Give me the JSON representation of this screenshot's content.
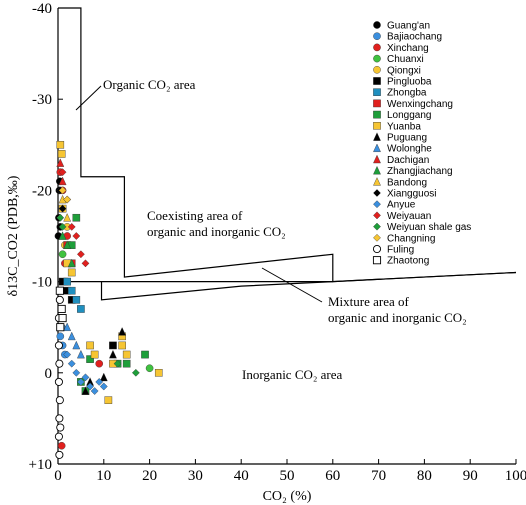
{
  "chart_data": {
    "type": "scatter",
    "x": {
      "label": "CO₂ (%)",
      "min": 0,
      "max": 100,
      "ticks": [
        0,
        10,
        20,
        30,
        40,
        50,
        60,
        70,
        80,
        90,
        100
      ]
    },
    "y": {
      "label": "δ13C_CO2 (PDB,‰)",
      "min": -40,
      "max": 10,
      "reversed": true,
      "ticks": [
        -40,
        -30,
        -20,
        -10,
        0,
        10
      ],
      "tick_labels": [
        "-40",
        "-30",
        "-20",
        "-10",
        "0",
        "+10"
      ]
    },
    "grid": false,
    "legend_position": "top-right",
    "series": [
      {
        "name": "Guang'an",
        "marker": "circle",
        "color": "#000000",
        "points": [
          [
            0.2,
            -17
          ],
          [
            0.5,
            -16
          ],
          [
            0.3,
            -20
          ],
          [
            0.4,
            -21
          ],
          [
            0.1,
            -15
          ]
        ]
      },
      {
        "name": "Bajiaochang",
        "marker": "circle",
        "color": "#3b8fde",
        "points": [
          [
            0.5,
            -4
          ],
          [
            1,
            -3
          ],
          [
            1.5,
            -2
          ],
          [
            0.8,
            -5
          ]
        ]
      },
      {
        "name": "Xinchang",
        "marker": "circle",
        "color": "#e0201e",
        "points": [
          [
            0.5,
            -22
          ],
          [
            1,
            -20
          ],
          [
            1.5,
            -12
          ],
          [
            2,
            -15
          ],
          [
            9,
            -1
          ],
          [
            0.8,
            8
          ]
        ]
      },
      {
        "name": "Chuanxi",
        "marker": "circle",
        "color": "#3fc23f",
        "points": [
          [
            20,
            -0.5
          ],
          [
            1,
            -13
          ],
          [
            2,
            -10
          ]
        ]
      },
      {
        "name": "Qiongxi",
        "marker": "circle",
        "color": "#f6c533",
        "points": [
          [
            1,
            -18
          ],
          [
            2,
            -16
          ],
          [
            1.5,
            -14
          ],
          [
            2.5,
            -12
          ],
          [
            0.5,
            -6
          ]
        ]
      },
      {
        "name": "Pingluoba",
        "marker": "square",
        "color": "#000000",
        "points": [
          [
            1,
            -10
          ],
          [
            2,
            -9
          ],
          [
            3,
            -8
          ],
          [
            12,
            -3
          ]
        ]
      },
      {
        "name": "Zhongba",
        "marker": "square",
        "color": "#1f8fbf",
        "points": [
          [
            2,
            -10
          ],
          [
            3,
            -9
          ],
          [
            4,
            -8
          ],
          [
            5,
            -7
          ]
        ]
      },
      {
        "name": "Wenxingchang",
        "marker": "square",
        "color": "#e0201e",
        "points": [
          [
            2,
            -14
          ],
          [
            3,
            -12
          ]
        ]
      },
      {
        "name": "Longgang",
        "marker": "square",
        "color": "#1e9e3a",
        "points": [
          [
            4,
            -17
          ],
          [
            3,
            -14
          ],
          [
            15,
            -1
          ],
          [
            19,
            -2
          ],
          [
            13,
            -1
          ],
          [
            7,
            -1.5
          ],
          [
            5,
            1
          ],
          [
            6,
            2
          ]
        ]
      },
      {
        "name": "Yuanba",
        "marker": "square",
        "color": "#f6c533",
        "points": [
          [
            0.5,
            -25
          ],
          [
            0.8,
            -24
          ],
          [
            1,
            -18
          ],
          [
            2,
            -12
          ],
          [
            3,
            -11
          ],
          [
            7,
            -3
          ],
          [
            8,
            -2
          ],
          [
            12,
            -1
          ],
          [
            14,
            -4
          ],
          [
            15,
            -2
          ],
          [
            22,
            0
          ],
          [
            11,
            3
          ],
          [
            14,
            -3
          ]
        ]
      },
      {
        "name": "Puguang",
        "marker": "triangle",
        "color": "#000000",
        "points": [
          [
            14,
            -4.5
          ],
          [
            12,
            -2
          ],
          [
            10,
            0.5
          ],
          [
            6,
            2
          ],
          [
            7,
            1
          ]
        ]
      },
      {
        "name": "Wolonghe",
        "marker": "triangle",
        "color": "#3b8fde",
        "points": [
          [
            2,
            -5
          ],
          [
            3,
            -4
          ],
          [
            4,
            -3
          ],
          [
            5,
            -2
          ]
        ]
      },
      {
        "name": "Dachigan",
        "marker": "triangle",
        "color": "#e0201e",
        "points": [
          [
            0.5,
            -23
          ],
          [
            1,
            -21
          ]
        ]
      },
      {
        "name": "Zhangjiachang",
        "marker": "triangle",
        "color": "#1e9e3a",
        "points": [
          [
            1,
            -15
          ],
          [
            2,
            -14
          ],
          [
            3,
            -12
          ]
        ]
      },
      {
        "name": "Bandong",
        "marker": "triangle",
        "color": "#f6c533",
        "points": [
          [
            1,
            -19
          ],
          [
            2,
            -17
          ]
        ]
      },
      {
        "name": "Xiangguosi",
        "marker": "diamond",
        "color": "#000000",
        "points": [
          [
            0.5,
            -20
          ],
          [
            1,
            -18
          ]
        ]
      },
      {
        "name": "Anyue",
        "marker": "diamond",
        "color": "#3b8fde",
        "points": [
          [
            2,
            -2
          ],
          [
            3,
            -1
          ],
          [
            4,
            0
          ],
          [
            5,
            1
          ],
          [
            6,
            0.5
          ],
          [
            7,
            1.5
          ],
          [
            8,
            2
          ],
          [
            9,
            1
          ],
          [
            10,
            1.5
          ]
        ]
      },
      {
        "name": "Weiyauan",
        "marker": "diamond",
        "color": "#e0201e",
        "points": [
          [
            2,
            -19
          ],
          [
            3,
            -16
          ],
          [
            4,
            -15
          ],
          [
            5,
            -13
          ],
          [
            6,
            -12
          ],
          [
            1,
            -22
          ]
        ]
      },
      {
        "name": "Weiyuan shale gas",
        "marker": "diamond",
        "color": "#1e9e3a",
        "points": [
          [
            0.5,
            -17
          ],
          [
            1,
            -16
          ],
          [
            17,
            0
          ],
          [
            13,
            -1
          ]
        ]
      },
      {
        "name": "Changning",
        "marker": "diamond",
        "color": "#f6c533",
        "points": [
          [
            1,
            -20
          ],
          [
            2,
            -19
          ]
        ]
      },
      {
        "name": "Fuling",
        "marker": "circle-open",
        "color": "#000000",
        "points": [
          [
            0.2,
            -3
          ],
          [
            0.3,
            -1
          ],
          [
            0.2,
            1
          ],
          [
            0.4,
            3
          ],
          [
            0.3,
            5
          ],
          [
            0.2,
            7
          ],
          [
            0.3,
            9
          ],
          [
            0.5,
            6
          ],
          [
            0.2,
            -6
          ],
          [
            0.4,
            -8
          ]
        ]
      },
      {
        "name": "Zhaotong",
        "marker": "square-open",
        "color": "#000000",
        "points": [
          [
            0.5,
            -5
          ],
          [
            0.8,
            -7
          ],
          [
            0.4,
            -9
          ],
          [
            1,
            -6
          ]
        ]
      }
    ],
    "annotations": [
      {
        "text": "Organic  CO₂ area"
      },
      {
        "text": "Coexisting area of"
      },
      {
        "text": "organic and inorganic  CO₂"
      },
      {
        "text": "Mixture area of"
      },
      {
        "text": "organic and inorganic  CO₂"
      },
      {
        "text": "Inorganic  CO₂ area"
      }
    ],
    "boundary_lines": [
      {
        "name": "organic-boundary",
        "points": [
          [
            0,
            -40
          ],
          [
            5,
            -40
          ],
          [
            5,
            -21.5
          ],
          [
            14.5,
            -21.5
          ],
          [
            14.5,
            -10.5
          ],
          [
            60,
            -13
          ],
          [
            60,
            -10
          ],
          [
            100,
            -11
          ]
        ]
      },
      {
        "name": "mixture-lower",
        "points": [
          [
            0,
            -10
          ],
          [
            9.5,
            -10
          ],
          [
            60,
            -10
          ],
          [
            100,
            -11
          ]
        ]
      },
      {
        "name": "mixture-mid",
        "points": [
          [
            9.5,
            -10
          ],
          [
            9.5,
            -8
          ],
          [
            40,
            -9.5
          ],
          [
            60,
            -10
          ]
        ]
      }
    ]
  }
}
